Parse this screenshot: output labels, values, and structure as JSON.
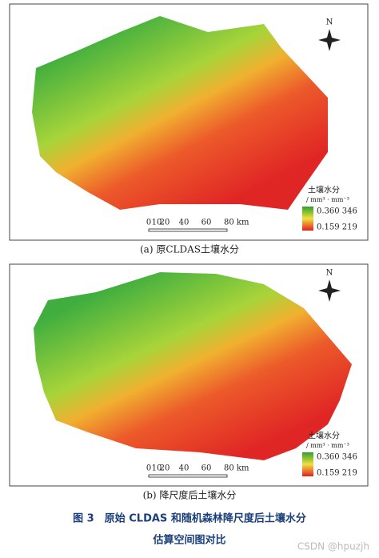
{
  "panels": [
    {
      "north": "N",
      "legend_title": "土壤水分",
      "legend_unit": "/ mm³ · mm⁻³",
      "legend_max": "0.360 346",
      "legend_min": "0.159 219",
      "scale_labels": [
        "0",
        "10",
        "20",
        "40",
        "60",
        "80 km"
      ],
      "caption": "(a) 原CLDAS土壤水分"
    },
    {
      "north": "N",
      "legend_title": "土壤水分",
      "legend_unit": "/ mm³ · mm⁻³",
      "legend_max": "0.360 346",
      "legend_min": "0.159 219",
      "scale_labels": [
        "0",
        "10",
        "20",
        "40",
        "60",
        "80 km"
      ],
      "caption": "(b) 降尺度后土壤水分"
    }
  ],
  "figure_caption": {
    "line1": "图 3　原始 CLDAS 和随机森林降尺度后土壤水分",
    "line2": "估算空间图对比"
  },
  "watermark": "CSDN @hpuzjh"
}
